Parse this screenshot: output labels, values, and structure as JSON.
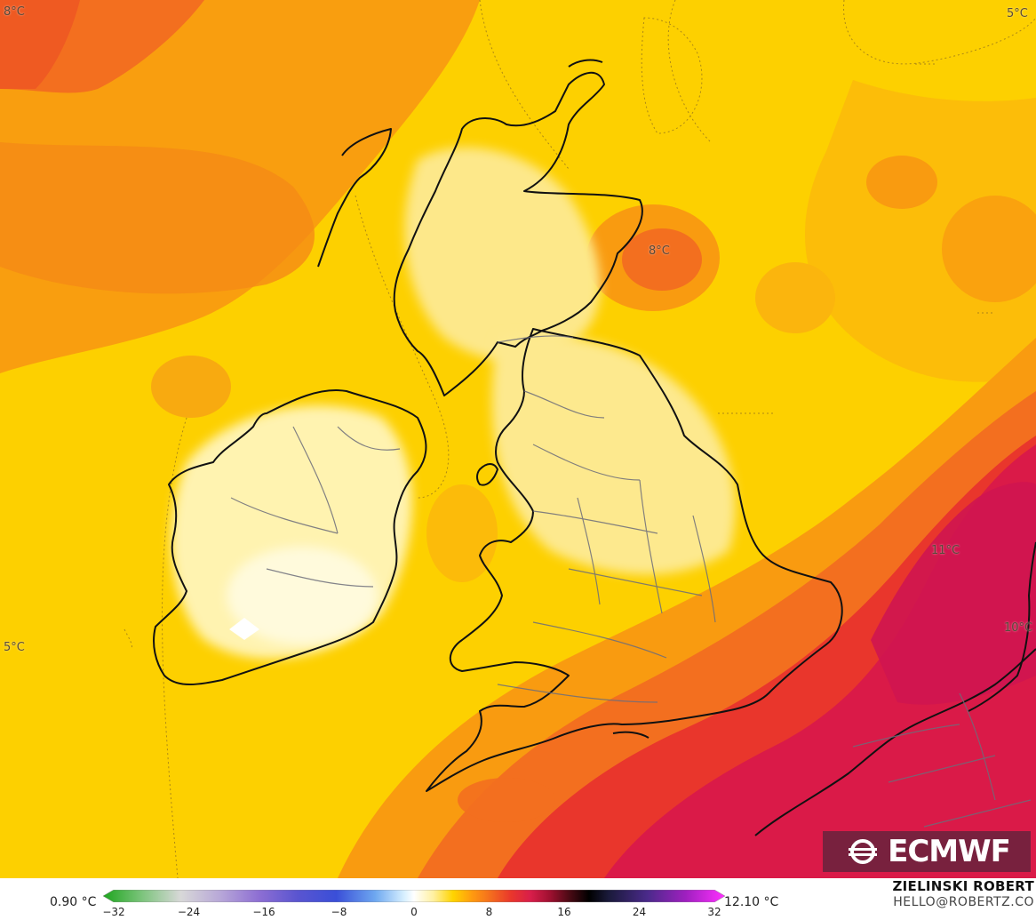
{
  "map": {
    "labels": [
      {
        "id": "nw-corner",
        "text": "8°C"
      },
      {
        "id": "ne-corner",
        "text": "5°C"
      },
      {
        "id": "north-sea",
        "text": "8°C"
      },
      {
        "id": "atlantic-west",
        "text": "5°C"
      },
      {
        "id": "france-east",
        "text": "11°C"
      },
      {
        "id": "belgium",
        "text": "10°C"
      }
    ],
    "colors": {
      "sea_base": "#fdd000",
      "land_pale": "#fff3b0",
      "warm_orange": "#f99b10",
      "hot_orange": "#f36f1f",
      "red": "#e9362c",
      "crimson": "#da1a48",
      "coastline": "#111111",
      "borders": "#7a7a86"
    }
  },
  "logo": {
    "text": "ECMWF"
  },
  "colorbar": {
    "min_label": "0.90 °C",
    "max_label": "12.10 °C",
    "ticks": [
      "−32",
      "−24",
      "−16",
      "−8",
      "0",
      "8",
      "16",
      "24",
      "32"
    ],
    "range": [
      -32,
      32
    ],
    "gradient": [
      {
        "v": -32,
        "c": "#1ea51e"
      },
      {
        "v": -28,
        "c": "#7cc47c"
      },
      {
        "v": -24,
        "c": "#d8d8d8"
      },
      {
        "v": -20,
        "c": "#b8a8d8"
      },
      {
        "v": -16,
        "c": "#8e6fd3"
      },
      {
        "v": -12,
        "c": "#5a55d0"
      },
      {
        "v": -8,
        "c": "#3a4fd8"
      },
      {
        "v": -4,
        "c": "#6ea8f0"
      },
      {
        "v": -1,
        "c": "#d8f0ff"
      },
      {
        "v": 0,
        "c": "#ffffff"
      },
      {
        "v": 2,
        "c": "#fff0a0"
      },
      {
        "v": 4,
        "c": "#ffd400"
      },
      {
        "v": 6,
        "c": "#ff9a10"
      },
      {
        "v": 8,
        "c": "#f36a1f"
      },
      {
        "v": 10,
        "c": "#e9362c"
      },
      {
        "v": 12,
        "c": "#d81e4a"
      },
      {
        "v": 14,
        "c": "#9e1030"
      },
      {
        "v": 16,
        "c": "#4a0a14"
      },
      {
        "v": 18,
        "c": "#000000"
      },
      {
        "v": 20,
        "c": "#1a1a3a"
      },
      {
        "v": 24,
        "c": "#4a2a8a"
      },
      {
        "v": 28,
        "c": "#a020c0"
      },
      {
        "v": 32,
        "c": "#ff30ff"
      }
    ]
  },
  "author": {
    "name": "ZIELINSKI ROBERT",
    "email": "HELLO@ROBERTZ.CO"
  }
}
